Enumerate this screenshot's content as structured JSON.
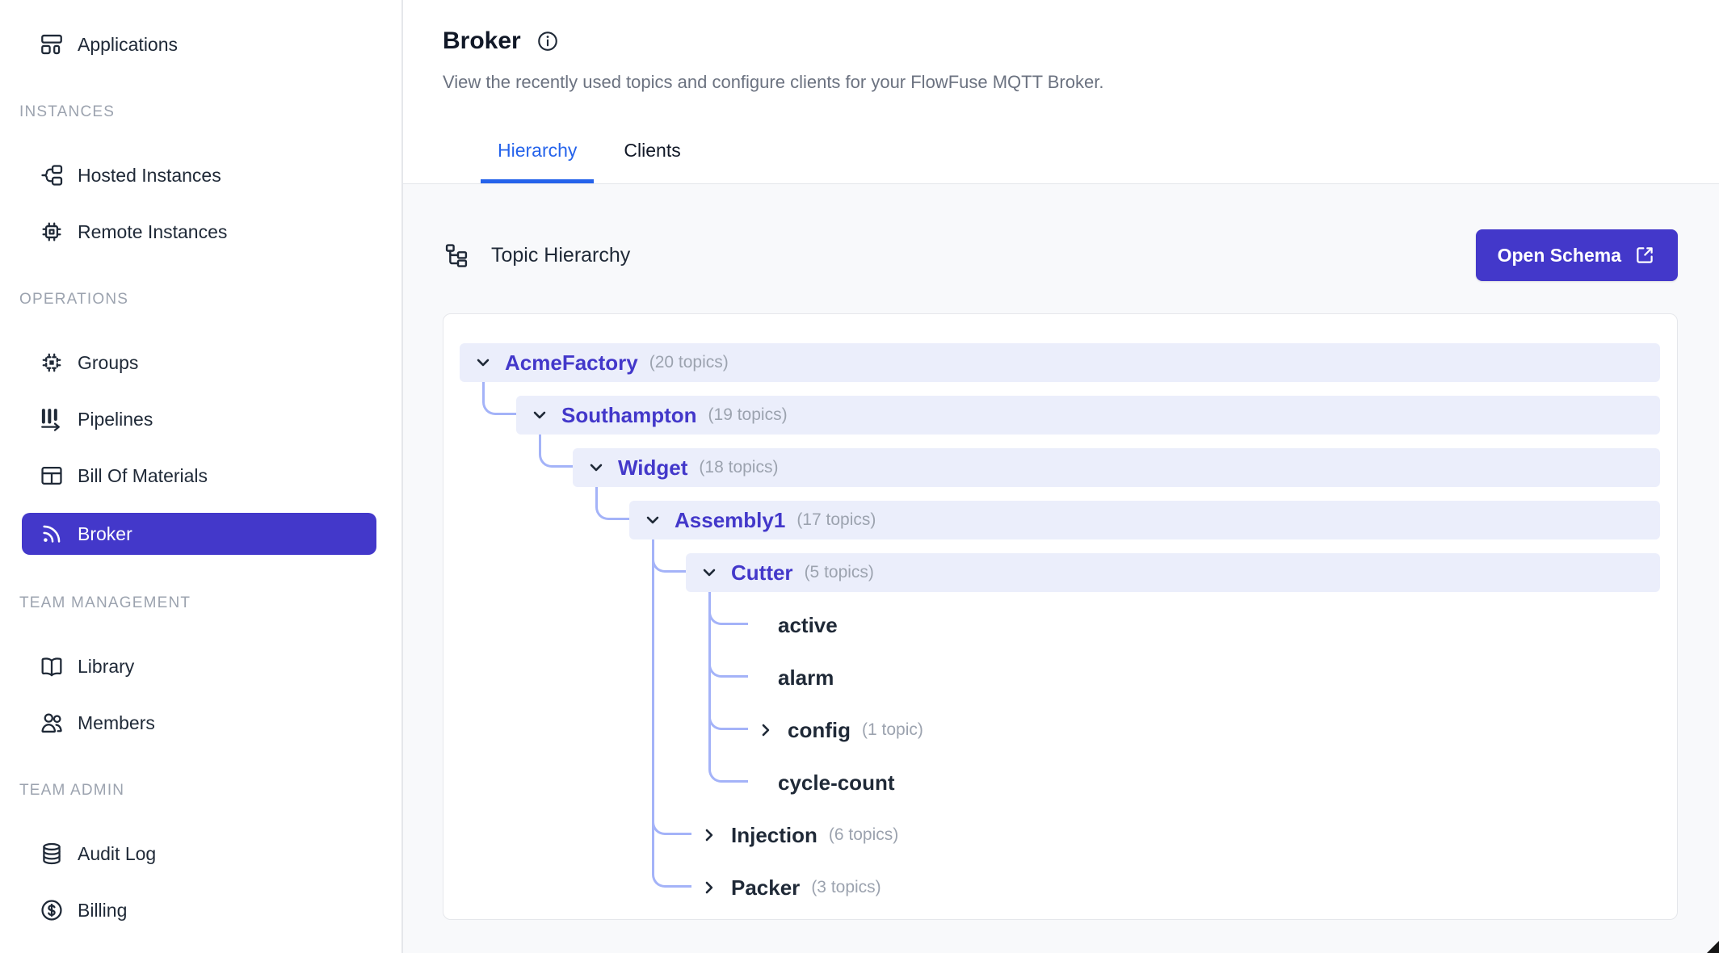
{
  "colors": {
    "accent_indigo": "#4338ca",
    "row_highlight": "#ebeefb",
    "connector": "#a4b3f8",
    "tab_active_blue": "#2563eb",
    "text_dark": "#1f2937",
    "text_gray": "#6b7280",
    "muted_gray": "#9ca3af",
    "panel_bg": "#f8f9fb",
    "border": "#e5e7eb"
  },
  "sidebar": {
    "sections": [
      {
        "header": "",
        "items": [
          {
            "label": "Applications",
            "icon": "applications-icon",
            "selected": false
          }
        ]
      },
      {
        "header": "INSTANCES",
        "items": [
          {
            "label": "Hosted Instances",
            "icon": "hosted-instances-icon",
            "selected": false
          },
          {
            "label": "Remote Instances",
            "icon": "remote-instances-icon",
            "selected": false
          }
        ]
      },
      {
        "header": "OPERATIONS",
        "items": [
          {
            "label": "Groups",
            "icon": "groups-icon",
            "selected": false
          },
          {
            "label": "Pipelines",
            "icon": "pipelines-icon",
            "selected": false
          },
          {
            "label": "Bill Of Materials",
            "icon": "bill-of-materials-icon",
            "selected": false
          },
          {
            "label": "Broker",
            "icon": "broker-icon",
            "selected": true
          }
        ]
      },
      {
        "header": "TEAM MANAGEMENT",
        "items": [
          {
            "label": "Library",
            "icon": "library-icon",
            "selected": false
          },
          {
            "label": "Members",
            "icon": "members-icon",
            "selected": false
          }
        ]
      },
      {
        "header": "TEAM ADMIN",
        "items": [
          {
            "label": "Audit Log",
            "icon": "audit-log-icon",
            "selected": false
          },
          {
            "label": "Billing",
            "icon": "billing-icon",
            "selected": false
          }
        ]
      }
    ]
  },
  "header": {
    "title": "Broker",
    "info_icon": "info-icon",
    "subtitle": "View the recently used topics and configure clients for your FlowFuse MQTT Broker."
  },
  "tabs": [
    {
      "label": "Hierarchy",
      "active": true
    },
    {
      "label": "Clients",
      "active": false
    }
  ],
  "panel": {
    "title": "Topic Hierarchy",
    "icon": "topic-hierarchy-icon",
    "button": {
      "label": "Open Schema",
      "icon": "external-link-icon"
    }
  },
  "tree": {
    "rows": [
      {
        "label": "AcmeFactory",
        "count": "(20 topics)",
        "depth": 0,
        "parent": null,
        "state": "expanded",
        "highlighted": true
      },
      {
        "label": "Southampton",
        "count": "(19 topics)",
        "depth": 1,
        "parent": 0,
        "state": "expanded",
        "highlighted": true
      },
      {
        "label": "Widget",
        "count": "(18 topics)",
        "depth": 2,
        "parent": 1,
        "state": "expanded",
        "highlighted": true
      },
      {
        "label": "Assembly1",
        "count": "(17 topics)",
        "depth": 3,
        "parent": 2,
        "state": "expanded",
        "highlighted": true
      },
      {
        "label": "Cutter",
        "count": "(5 topics)",
        "depth": 4,
        "parent": 3,
        "state": "expanded",
        "highlighted": true
      },
      {
        "label": "active",
        "count": "",
        "depth": 5,
        "parent": 4,
        "state": "leaf",
        "highlighted": false
      },
      {
        "label": "alarm",
        "count": "",
        "depth": 5,
        "parent": 4,
        "state": "leaf",
        "highlighted": false
      },
      {
        "label": "config",
        "count": "(1 topic)",
        "depth": 5,
        "parent": 4,
        "state": "collapsed",
        "highlighted": false
      },
      {
        "label": "cycle-count",
        "count": "",
        "depth": 5,
        "parent": 4,
        "state": "leaf",
        "highlighted": false
      },
      {
        "label": "Injection",
        "count": "(6 topics)",
        "depth": 4,
        "parent": 3,
        "state": "collapsed",
        "highlighted": false
      },
      {
        "label": "Packer",
        "count": "(3 topics)",
        "depth": 4,
        "parent": 3,
        "state": "collapsed",
        "highlighted": false
      }
    ]
  }
}
